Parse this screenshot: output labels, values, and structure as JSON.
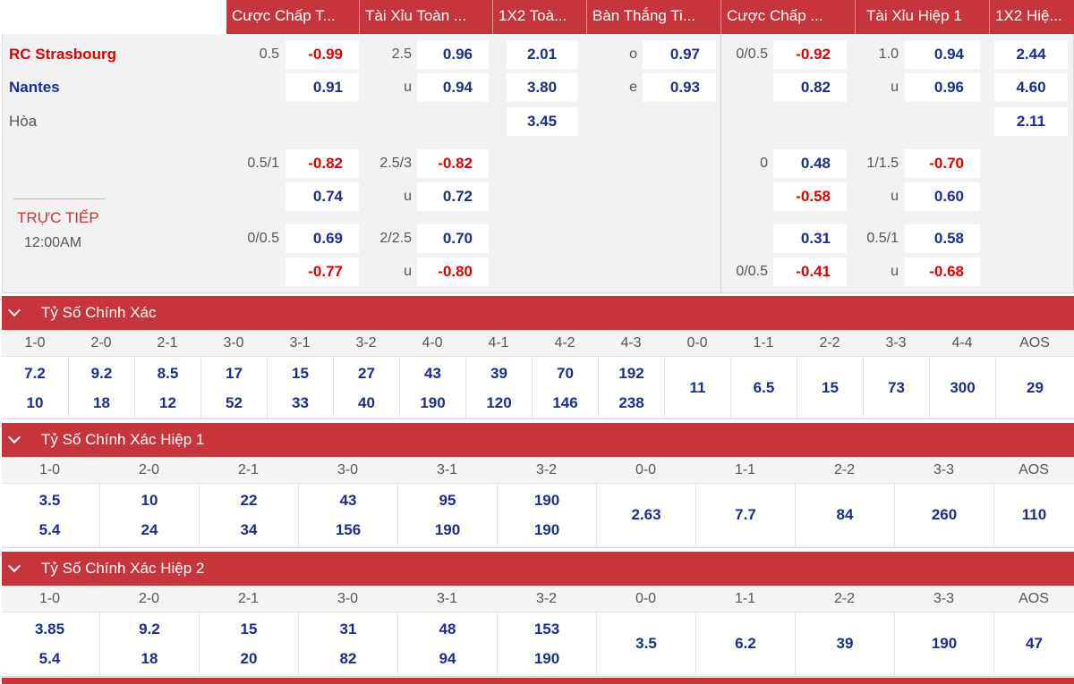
{
  "header": {
    "columns": [
      "Cược Chấp T...",
      "Tài Xỉu Toàn ...",
      "1X2 Toà...",
      "Bàn Thắng Ti...",
      "Cược Chấp ...",
      "Tài Xỉu Hiệp 1",
      "1X2 Hiệ..."
    ]
  },
  "match": {
    "home": "RC Strasbourg",
    "away": "Nantes",
    "draw": "Hòa",
    "live": "TRỰC TIẾP",
    "time": "12:00AM"
  },
  "odds": {
    "ft_handicap": [
      {
        "line": "0.5",
        "home": "-0.99",
        "away": "0.91"
      },
      {
        "line": "0.5/1",
        "home": "-0.82",
        "away": "0.74"
      },
      {
        "line": "0/0.5",
        "home": "0.69",
        "away": "-0.77"
      }
    ],
    "ft_over_under": [
      {
        "line": "2.5",
        "over": "0.96",
        "u": "u",
        "under": "0.94"
      },
      {
        "line": "2.5/3",
        "over": "-0.82",
        "u": "u",
        "under": "0.72"
      },
      {
        "line": "2/2.5",
        "over": "0.70",
        "u": "u",
        "under": "-0.80"
      }
    ],
    "ft_1x2": {
      "home": "2.01",
      "away": "3.80",
      "draw": "3.45"
    },
    "goals_odd_even": {
      "o_label": "o",
      "o": "0.97",
      "e_label": "e",
      "e": "0.93"
    },
    "h1_handicap": [
      {
        "line_home": "0/0.5",
        "home": "-0.92",
        "line_away": "",
        "away": "0.82"
      },
      {
        "line_home": "0",
        "home": "0.48",
        "line_away": "",
        "away": "-0.58"
      },
      {
        "line_home": "",
        "home": "0.31",
        "line_away": "0/0.5",
        "away": "-0.41"
      }
    ],
    "h1_over_under": [
      {
        "line": "1.0",
        "over": "0.94",
        "u": "u",
        "under": "0.96"
      },
      {
        "line": "1/1.5",
        "over": "-0.70",
        "u": "u",
        "under": "0.60"
      },
      {
        "line": "0.5/1",
        "over": "0.58",
        "u": "u",
        "under": "-0.68"
      }
    ],
    "h1_1x2": {
      "home": "2.44",
      "away": "4.60",
      "draw": "2.11"
    }
  },
  "sections": [
    {
      "title": "Tỷ Số Chính Xác",
      "labels": [
        "1-0",
        "2-0",
        "2-1",
        "3-0",
        "3-1",
        "3-2",
        "4-0",
        "4-1",
        "4-2",
        "4-3",
        "0-0",
        "1-1",
        "2-2",
        "3-3",
        "4-4",
        "AOS"
      ],
      "top": [
        "7.2",
        "9.2",
        "8.5",
        "17",
        "15",
        "27",
        "43",
        "39",
        "70",
        "192",
        "11",
        "6.5",
        "15",
        "73",
        "300",
        "29"
      ],
      "bottom": [
        "10",
        "18",
        "12",
        "52",
        "33",
        "40",
        "190",
        "120",
        "146",
        "238",
        "",
        "",
        "",
        "",
        "",
        ""
      ]
    },
    {
      "title": "Tỷ Số Chính Xác Hiệp 1",
      "labels": [
        "1-0",
        "2-0",
        "2-1",
        "3-0",
        "3-1",
        "3-2",
        "0-0",
        "1-1",
        "2-2",
        "3-3",
        "AOS"
      ],
      "top": [
        "3.5",
        "10",
        "22",
        "43",
        "95",
        "190",
        "2.63",
        "7.7",
        "84",
        "260",
        "110"
      ],
      "bottom": [
        "5.4",
        "24",
        "34",
        "156",
        "190",
        "190",
        "",
        "",
        "",
        "",
        ""
      ]
    },
    {
      "title": "Tỷ Số Chính Xác Hiệp 2",
      "labels": [
        "1-0",
        "2-0",
        "2-1",
        "3-0",
        "3-1",
        "3-2",
        "0-0",
        "1-1",
        "2-2",
        "3-3",
        "AOS"
      ],
      "top": [
        "3.85",
        "9.2",
        "15",
        "31",
        "48",
        "153",
        "3.5",
        "6.2",
        "39",
        "190",
        "47"
      ],
      "bottom": [
        "5.4",
        "18",
        "20",
        "82",
        "94",
        "190",
        "",
        "",
        "",
        "",
        ""
      ]
    }
  ]
}
